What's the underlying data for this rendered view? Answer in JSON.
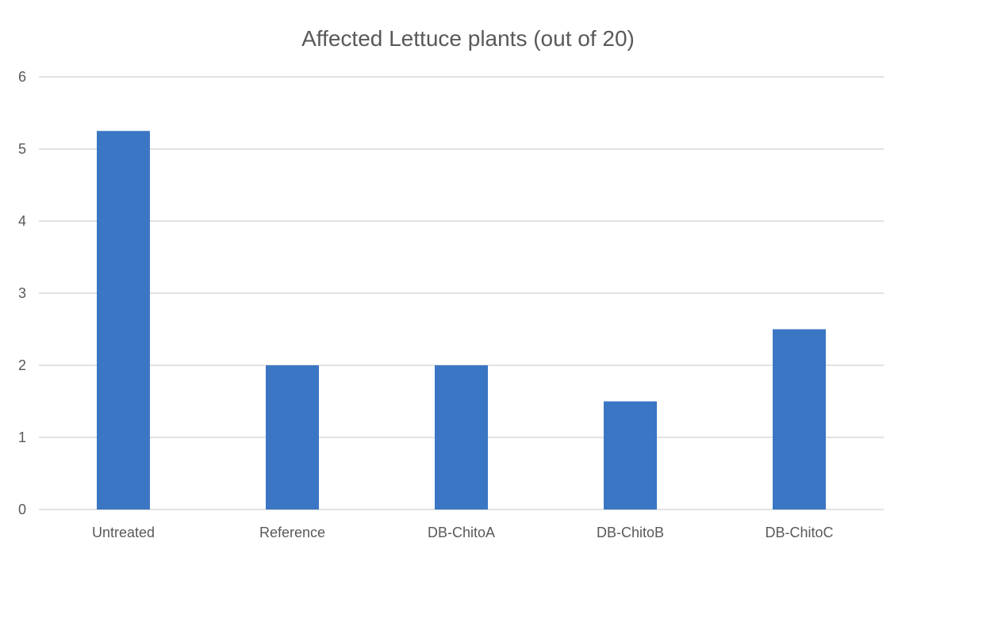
{
  "chart_data": {
    "type": "bar",
    "title": "Affected Lettuce plants (out of 20)",
    "xlabel": "",
    "ylabel": "",
    "categories": [
      "Untreated",
      "Reference",
      "DB-ChitoA",
      "DB-ChitoB",
      "DB-ChitoC"
    ],
    "values": [
      5.25,
      2,
      2,
      1.5,
      2.5
    ],
    "ylim": [
      0,
      6
    ],
    "yticks": [
      "0",
      "1",
      "2",
      "3",
      "4",
      "5",
      "6"
    ],
    "grid": true,
    "legend": "none",
    "colors": {
      "bar": "#3b76c4",
      "grid": "#d9d9d9",
      "text": "#595959"
    }
  }
}
